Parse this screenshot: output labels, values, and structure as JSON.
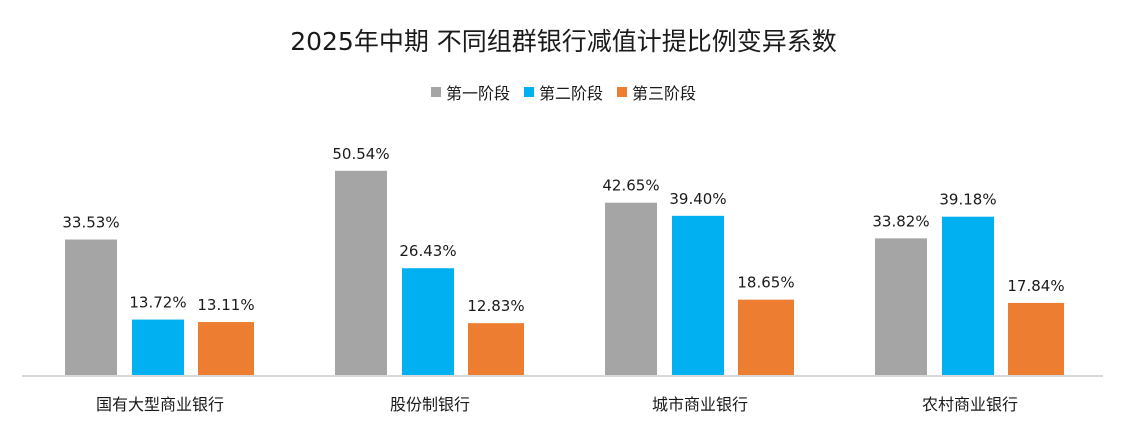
{
  "chart_data": {
    "type": "bar",
    "title": "2025年中期  不同组群银行减值计提比例变异系数",
    "categories": [
      "国有大型商业银行",
      "股份制银行",
      "城市商业银行",
      "农村商业银行"
    ],
    "series": [
      {
        "name": "第一阶段",
        "color": "#A5A5A5",
        "values": [
          33.53,
          50.54,
          42.65,
          33.82
        ],
        "labels": [
          "33.53%",
          "50.54%",
          "42.65%",
          "33.82%"
        ]
      },
      {
        "name": "第二阶段",
        "color": "#00B0F0",
        "values": [
          13.72,
          26.43,
          39.4,
          39.18
        ],
        "labels": [
          "13.72%",
          "26.43%",
          "39.40%",
          "39.18%"
        ]
      },
      {
        "name": "第三阶段",
        "color": "#ED7D31",
        "values": [
          13.11,
          12.83,
          18.65,
          17.84
        ],
        "labels": [
          "13.11%",
          "12.83%",
          "18.65%",
          "17.84%"
        ]
      }
    ],
    "unit": "%",
    "legend": "top",
    "grid": false,
    "y_axis_visible": false
  }
}
